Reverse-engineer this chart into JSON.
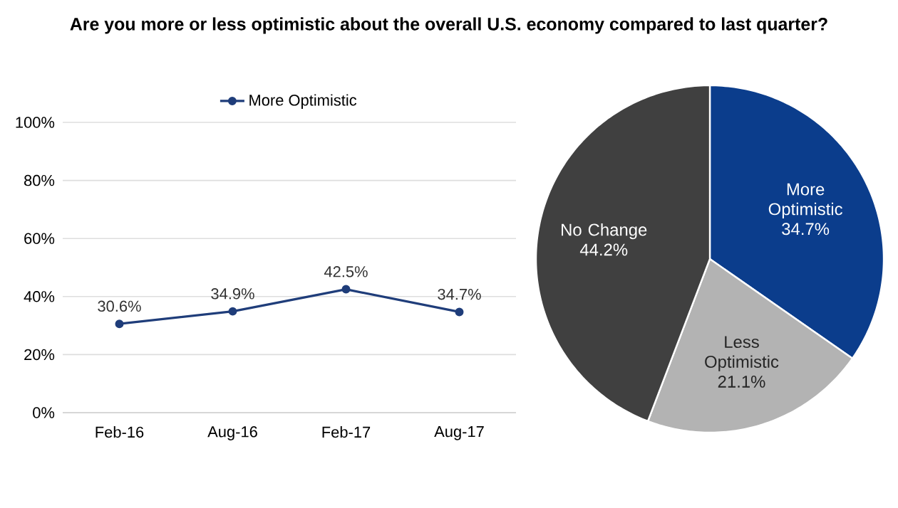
{
  "chart_data": [
    {
      "type": "line",
      "title": "Are you more or less optimistic about the overall U.S. economy compared to last quarter?",
      "categories": [
        "Feb-16",
        "Aug-16",
        "Feb-17",
        "Aug-17"
      ],
      "series": [
        {
          "name": "More Optimistic",
          "color": "#1f3d7a",
          "values": [
            30.6,
            34.9,
            42.5,
            34.7
          ],
          "value_labels": [
            "30.6%",
            "34.9%",
            "42.5%",
            "34.7%"
          ]
        }
      ],
      "ylim": [
        0,
        100
      ],
      "yticks": [
        {
          "value": 0,
          "label": "0%"
        },
        {
          "value": 20,
          "label": "20%"
        },
        {
          "value": 40,
          "label": "40%"
        },
        {
          "value": 60,
          "label": "60%"
        },
        {
          "value": 80,
          "label": "80%"
        },
        {
          "value": 100,
          "label": "100%"
        }
      ],
      "grid": "y",
      "legend": "top",
      "marker": "circle"
    },
    {
      "type": "pie",
      "categories": [
        "More Optimistic",
        "Less Optimistic",
        "No Change"
      ],
      "values": [
        34.7,
        21.1,
        44.2
      ],
      "colors": [
        "#0b3d8c",
        "#b3b3b3",
        "#404040"
      ],
      "value_labels": [
        "34.7%",
        "21.1%",
        "44.2%"
      ]
    }
  ]
}
